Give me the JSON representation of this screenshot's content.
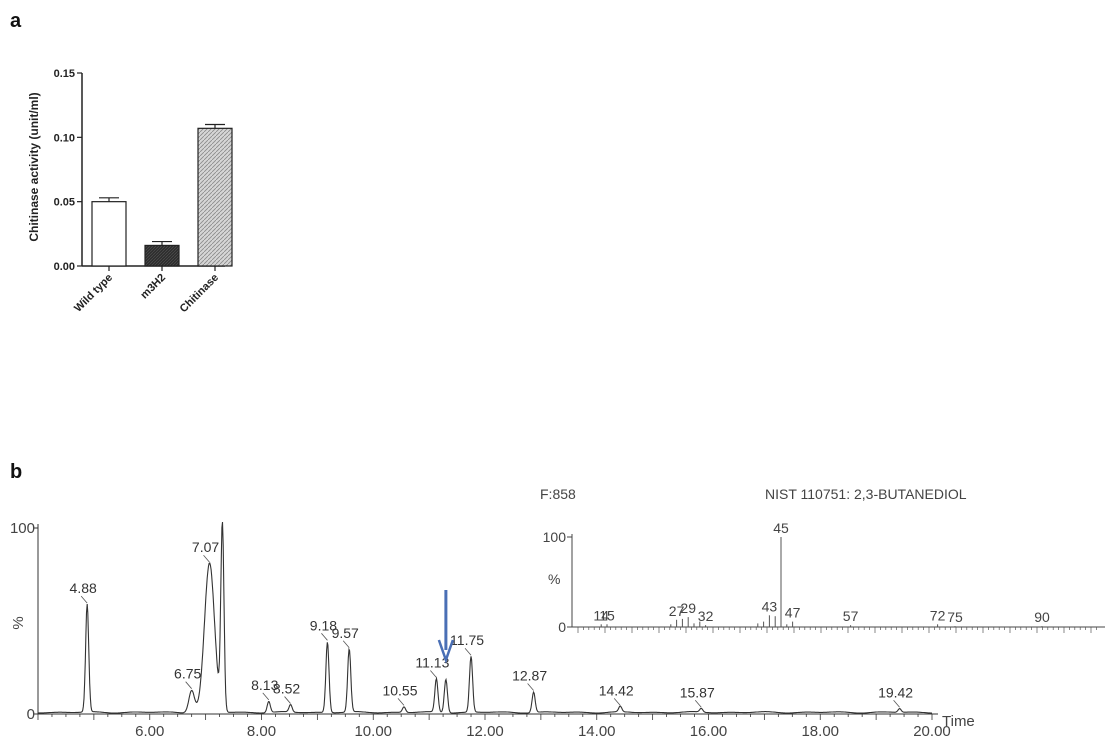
{
  "panels": {
    "a": "a",
    "b": "b"
  },
  "chart_data": [
    {
      "type": "bar",
      "categories": [
        "Wild type",
        "m3H2",
        "Chitinase"
      ],
      "values": [
        0.05,
        0.016,
        0.107
      ],
      "errors": [
        0.003,
        0.003,
        0.003
      ],
      "ylabel": "Chitinase activity (unit/ml)",
      "ylim": [
        0,
        0.15
      ],
      "yticks": [
        "0.00",
        "0.05",
        "0.10",
        "0.15"
      ],
      "fills": [
        "#ffffff",
        "#2a2a2a",
        "#c8c8c8"
      ]
    },
    {
      "type": "line",
      "xlabel": "Time",
      "ylabel": "%",
      "xlim": [
        4.0,
        20.0
      ],
      "ylim": [
        0,
        100
      ],
      "xticks": [
        "6.00",
        "8.00",
        "10.00",
        "12.00",
        "14.00",
        "16.00",
        "18.00",
        "20.00"
      ],
      "yticks": [
        "0",
        "100"
      ],
      "arrow_at": 11.3,
      "peaks": [
        {
          "x": 4.88,
          "y": 58,
          "label": "4.88"
        },
        {
          "x": 6.75,
          "y": 12,
          "label": "6.75"
        },
        {
          "x": 7.07,
          "y": 80,
          "label": "7.07"
        },
        {
          "x": 7.3,
          "y": 100,
          "label": ""
        },
        {
          "x": 8.13,
          "y": 6,
          "label": "8.13"
        },
        {
          "x": 8.52,
          "y": 4,
          "label": "8.52"
        },
        {
          "x": 9.18,
          "y": 38,
          "label": "9.18"
        },
        {
          "x": 9.57,
          "y": 34,
          "label": "9.57"
        },
        {
          "x": 10.55,
          "y": 3,
          "label": "10.55"
        },
        {
          "x": 11.13,
          "y": 18,
          "label": "11.13"
        },
        {
          "x": 11.3,
          "y": 18,
          "label": ""
        },
        {
          "x": 11.75,
          "y": 30,
          "label": "11.75"
        },
        {
          "x": 12.87,
          "y": 11,
          "label": "12.87"
        },
        {
          "x": 14.42,
          "y": 3,
          "label": "14.42"
        },
        {
          "x": 15.87,
          "y": 2,
          "label": "15.87"
        },
        {
          "x": 19.42,
          "y": 2,
          "label": "19.42"
        }
      ]
    },
    {
      "type": "bar",
      "header_left": "F:858",
      "header_right": "NIST  110751: 2,3-BUTANEDIOL",
      "ylabel": "%",
      "yticks": [
        "0",
        "100"
      ],
      "xlim": [
        10,
        95
      ],
      "ylim": [
        0,
        100
      ],
      "labeled": [
        {
          "mz": 14,
          "y": 3
        },
        {
          "mz": 15,
          "y": 3
        },
        {
          "mz": 27,
          "y": 8
        },
        {
          "mz": 29,
          "y": 11
        },
        {
          "mz": 32,
          "y": 2
        },
        {
          "mz": 43,
          "y": 13
        },
        {
          "mz": 45,
          "y": 100
        },
        {
          "mz": 47,
          "y": 6
        },
        {
          "mz": 57,
          "y": 2
        },
        {
          "mz": 72,
          "y": 3
        },
        {
          "mz": 75,
          "y": 1
        },
        {
          "mz": 90,
          "y": 1
        }
      ],
      "minor": [
        {
          "mz": 26,
          "y": 3
        },
        {
          "mz": 28,
          "y": 9
        },
        {
          "mz": 30,
          "y": 4
        },
        {
          "mz": 31,
          "y": 6
        },
        {
          "mz": 41,
          "y": 4
        },
        {
          "mz": 42,
          "y": 6
        },
        {
          "mz": 44,
          "y": 12
        },
        {
          "mz": 46,
          "y": 3
        }
      ]
    }
  ]
}
